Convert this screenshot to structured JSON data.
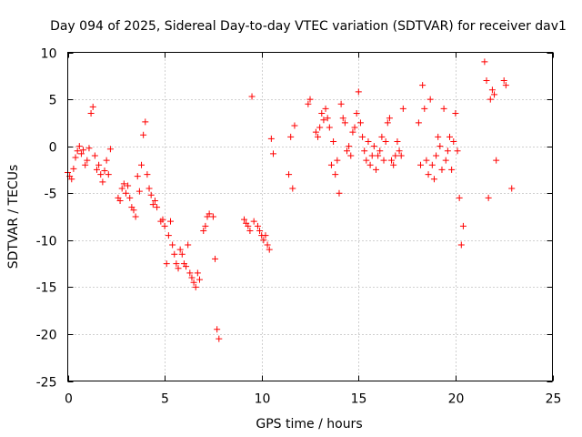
{
  "chart_data": {
    "type": "scatter",
    "title": "Day 094 of 2025, Sidereal Day-to-day VTEC variation (SDTVAR) for receiver dav1",
    "xlabel": "GPS time / hours",
    "ylabel": "SDTVAR / TECUs",
    "xlim": [
      0,
      25
    ],
    "ylim": [
      -25,
      10
    ],
    "xticks": [
      0,
      5,
      10,
      15,
      20,
      25
    ],
    "yticks": [
      -25,
      -20,
      -15,
      -10,
      -5,
      0,
      5,
      10
    ],
    "xtick_labels": [
      "0",
      "5",
      "10",
      "15",
      "20",
      "25"
    ],
    "ytick_labels": [
      "-25",
      "-20",
      "-15",
      "-10",
      "-5",
      "0",
      "5",
      "10"
    ],
    "grid": true,
    "marker": "+",
    "color": "#ff0000",
    "series": [
      {
        "name": "SDTVAR",
        "x": [
          0.0,
          0.1,
          0.2,
          0.3,
          0.4,
          0.5,
          0.6,
          0.7,
          0.8,
          0.9,
          1.0,
          1.1,
          1.2,
          1.3,
          1.4,
          1.5,
          1.6,
          1.7,
          1.8,
          1.9,
          2.0,
          2.1,
          2.2,
          2.6,
          2.7,
          2.8,
          2.9,
          3.0,
          3.1,
          3.2,
          3.3,
          3.4,
          3.5,
          3.6,
          3.7,
          3.8,
          3.9,
          4.0,
          4.1,
          4.2,
          4.3,
          4.4,
          4.5,
          4.6,
          4.8,
          4.9,
          5.0,
          5.1,
          5.2,
          5.3,
          5.4,
          5.5,
          5.6,
          5.7,
          5.8,
          5.9,
          6.0,
          6.1,
          6.2,
          6.3,
          6.4,
          6.5,
          6.6,
          6.7,
          6.8,
          7.0,
          7.1,
          7.2,
          7.3,
          7.5,
          7.6,
          7.7,
          7.8,
          9.1,
          9.2,
          9.3,
          9.4,
          9.5,
          9.6,
          9.8,
          9.9,
          10.0,
          10.1,
          10.2,
          10.3,
          10.4,
          10.5,
          10.6,
          11.4,
          11.5,
          11.6,
          11.7,
          12.4,
          12.5,
          12.8,
          12.9,
          13.0,
          13.1,
          13.2,
          13.3,
          13.4,
          13.5,
          13.6,
          13.7,
          13.8,
          13.9,
          14.0,
          14.1,
          14.2,
          14.3,
          14.4,
          14.5,
          14.6,
          14.7,
          14.8,
          14.9,
          15.0,
          15.1,
          15.2,
          15.3,
          15.4,
          15.5,
          15.6,
          15.7,
          15.8,
          15.9,
          16.0,
          16.1,
          16.2,
          16.3,
          16.4,
          16.5,
          16.6,
          16.7,
          16.8,
          16.9,
          17.0,
          17.1,
          17.2,
          17.3,
          18.1,
          18.2,
          18.3,
          18.4,
          18.5,
          18.6,
          18.7,
          18.8,
          18.9,
          19.0,
          19.1,
          19.2,
          19.3,
          19.4,
          19.5,
          19.6,
          19.7,
          19.8,
          19.9,
          20.0,
          20.1,
          20.2,
          20.3,
          20.4,
          21.5,
          21.6,
          21.7,
          21.8,
          21.9,
          22.0,
          22.1,
          22.5,
          22.6,
          22.9
        ],
        "y": [
          -2.8,
          -3.2,
          -3.5,
          -2.4,
          -1.2,
          -0.5,
          0.0,
          -0.8,
          -0.4,
          -2.0,
          -1.5,
          -0.2,
          3.5,
          4.2,
          -1.0,
          -2.5,
          -2.0,
          -3.0,
          -3.8,
          -2.6,
          -1.5,
          -3.0,
          -0.3,
          -5.5,
          -5.8,
          -4.5,
          -4.0,
          -5.0,
          -4.2,
          -5.5,
          -6.5,
          -6.8,
          -7.5,
          -3.2,
          -4.8,
          -2.0,
          1.2,
          2.6,
          -3.0,
          -4.5,
          -5.2,
          -6.2,
          -5.8,
          -6.5,
          -8.0,
          -7.8,
          -8.5,
          -12.5,
          -9.5,
          -8.0,
          -10.5,
          -11.5,
          -12.5,
          -13.0,
          -11.0,
          -11.5,
          -12.5,
          -12.8,
          -10.5,
          -13.5,
          -14.0,
          -14.5,
          -15.0,
          -13.5,
          -14.2,
          -9.0,
          -8.5,
          -7.5,
          -7.2,
          -7.5,
          -12.0,
          -19.5,
          -20.5,
          -7.8,
          -8.2,
          -8.5,
          -9.0,
          5.3,
          -8.0,
          -8.5,
          -9.0,
          -9.5,
          -10.0,
          -9.5,
          -10.5,
          -11.0,
          0.8,
          -0.8,
          -3.0,
          1.0,
          -4.5,
          2.2,
          4.5,
          5.0,
          1.5,
          1.0,
          2.0,
          3.5,
          2.8,
          4.0,
          3.0,
          2.0,
          -2.0,
          0.5,
          -3.0,
          -1.5,
          -5.0,
          4.5,
          3.0,
          2.5,
          -0.5,
          0.0,
          -1.0,
          1.5,
          2.0,
          3.5,
          5.8,
          2.5,
          1.0,
          -0.5,
          -1.5,
          0.5,
          -2.0,
          -1.0,
          0.0,
          -2.5,
          -1.0,
          -0.5,
          1.0,
          -1.5,
          0.5,
          2.5,
          3.0,
          -1.5,
          -2.0,
          -1.0,
          0.5,
          -0.5,
          -1.0,
          4.0,
          2.5,
          -2.0,
          6.5,
          4.0,
          -1.5,
          -3.0,
          5.0,
          -2.0,
          -3.5,
          -1.0,
          1.0,
          0.0,
          -2.5,
          4.0,
          -1.5,
          -0.5,
          1.0,
          -2.5,
          0.5,
          3.5,
          -0.5,
          -5.5,
          -10.5,
          -8.5,
          9.0,
          7.0,
          -5.5,
          5.0,
          6.0,
          5.5,
          -1.5,
          7.0,
          6.5,
          -4.5
        ]
      }
    ]
  }
}
